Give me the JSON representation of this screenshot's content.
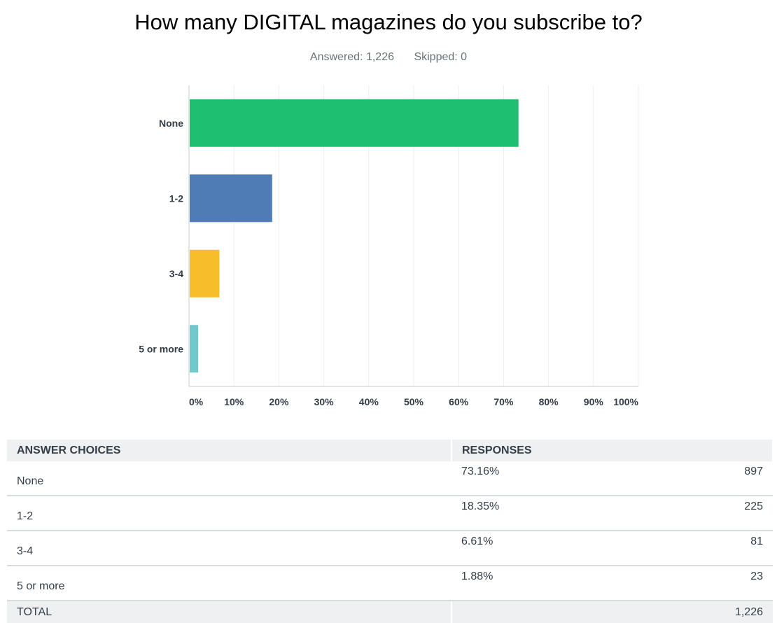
{
  "question": {
    "title": "How many DIGITAL magazines do you subscribe to?",
    "answered_label": "Answered: 1,226",
    "skipped_label": "Skipped: 0"
  },
  "chart_data": {
    "type": "bar",
    "orientation": "horizontal",
    "title": "How many DIGITAL magazines do you subscribe to?",
    "categories": [
      "None",
      "1-2",
      "3-4",
      "5 or more"
    ],
    "values": [
      73.16,
      18.35,
      6.61,
      1.88
    ],
    "colors": [
      "#1fbf72",
      "#507cb6",
      "#f7bd2a",
      "#71c9ca"
    ],
    "xlim": [
      0,
      100
    ],
    "ticks": [
      0,
      10,
      20,
      30,
      40,
      50,
      60,
      70,
      80,
      90,
      100
    ],
    "tick_labels": [
      "0%",
      "10%",
      "20%",
      "30%",
      "40%",
      "50%",
      "60%",
      "70%",
      "80%",
      "90%",
      "100%"
    ],
    "grid": true,
    "xlabel": "",
    "ylabel": ""
  },
  "table": {
    "headers": [
      "ANSWER CHOICES",
      "RESPONSES"
    ],
    "rows": [
      {
        "choice": "None",
        "percent": "73.16%",
        "count": "897"
      },
      {
        "choice": "1-2",
        "percent": "18.35%",
        "count": "225"
      },
      {
        "choice": "3-4",
        "percent": "6.61%",
        "count": "81"
      },
      {
        "choice": "5 or more",
        "percent": "1.88%",
        "count": "23"
      }
    ],
    "total_label": "TOTAL",
    "total_count": "1,226"
  }
}
